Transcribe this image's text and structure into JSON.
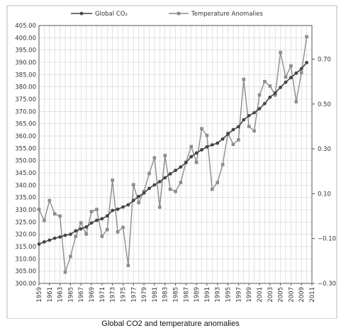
{
  "caption": "Global CO2 and temperature anomalies",
  "chart_data": {
    "type": "line",
    "x": [
      1959,
      1960,
      1961,
      1962,
      1963,
      1964,
      1965,
      1966,
      1967,
      1968,
      1969,
      1970,
      1971,
      1972,
      1973,
      1974,
      1975,
      1976,
      1977,
      1978,
      1979,
      1980,
      1981,
      1982,
      1983,
      1984,
      1985,
      1986,
      1987,
      1988,
      1989,
      1990,
      1991,
      1992,
      1993,
      1994,
      1995,
      1996,
      1997,
      1998,
      1999,
      2000,
      2001,
      2002,
      2003,
      2004,
      2005,
      2006,
      2007,
      2008,
      2009,
      2010
    ],
    "x_tick_labels": [
      "1959",
      "1961",
      "1963",
      "1965",
      "1967",
      "1969",
      "1971",
      "1973",
      "1975",
      "1977",
      "1979",
      "1981",
      "1983",
      "1985",
      "1987",
      "1989",
      "1991",
      "1993",
      "1995",
      "1997",
      "1999",
      "2001",
      "2003",
      "2005",
      "2007",
      "2009",
      "2011"
    ],
    "x_tick_values": [
      1959,
      1961,
      1963,
      1965,
      1967,
      1969,
      1971,
      1973,
      1975,
      1977,
      1979,
      1981,
      1983,
      1985,
      1987,
      1989,
      1991,
      1993,
      1995,
      1997,
      1999,
      2001,
      2003,
      2005,
      2007,
      2009,
      2011
    ],
    "xlim": [
      1959,
      2011
    ],
    "left_axis": {
      "ylim": [
        300,
        405
      ],
      "tick_labels": [
        "300.00",
        "305.00",
        "310.00",
        "315.00",
        "320.00",
        "325.00",
        "330.00",
        "335.00",
        "340.00",
        "345.00",
        "350.00",
        "355.00",
        "360.00",
        "365.00",
        "370.00",
        "375.00",
        "380.00",
        "385.00",
        "390.00",
        "395.00",
        "400.00",
        "405.00"
      ]
    },
    "right_axis": {
      "ylim": [
        -0.3,
        0.85
      ],
      "tick_values": [
        -0.3,
        -0.1,
        0.1,
        0.3,
        0.5,
        0.7
      ],
      "tick_labels": [
        "−0.30",
        "−0.10",
        "0.10",
        "0.30",
        "0.50",
        "0.70"
      ]
    },
    "grid": true,
    "legend_position": "top",
    "series": [
      {
        "name": "Global CO₂",
        "axis": "left",
        "marker": "circle",
        "color": "#444444",
        "values": [
          316.0,
          316.9,
          317.6,
          318.4,
          318.9,
          319.6,
          320.0,
          321.4,
          322.2,
          323.0,
          324.6,
          325.7,
          326.3,
          327.5,
          329.7,
          330.2,
          331.1,
          332.0,
          333.8,
          335.4,
          336.8,
          338.7,
          340.1,
          341.4,
          343.0,
          344.6,
          346.0,
          347.4,
          349.2,
          351.6,
          353.1,
          354.4,
          355.6,
          356.4,
          357.1,
          358.8,
          360.8,
          362.6,
          363.8,
          366.6,
          368.3,
          369.5,
          371.1,
          373.2,
          375.8,
          377.5,
          379.8,
          381.9,
          383.8,
          385.6,
          387.4,
          389.9
        ]
      },
      {
        "name": "Temperature Anomalies",
        "axis": "right",
        "marker": "square",
        "color": "#8c8c8c",
        "values": [
          0.03,
          -0.02,
          0.07,
          0.01,
          0.0,
          -0.25,
          -0.18,
          -0.09,
          -0.03,
          -0.08,
          0.02,
          0.03,
          -0.09,
          -0.06,
          0.16,
          -0.07,
          -0.05,
          -0.22,
          0.14,
          0.06,
          0.11,
          0.19,
          0.26,
          0.04,
          0.27,
          0.12,
          0.11,
          0.15,
          0.24,
          0.31,
          0.24,
          0.39,
          0.36,
          0.12,
          0.15,
          0.23,
          0.37,
          0.32,
          0.34,
          0.61,
          0.4,
          0.38,
          0.54,
          0.6,
          0.58,
          0.54,
          0.73,
          0.62,
          0.67,
          0.51,
          0.64,
          0.8
        ]
      }
    ]
  }
}
